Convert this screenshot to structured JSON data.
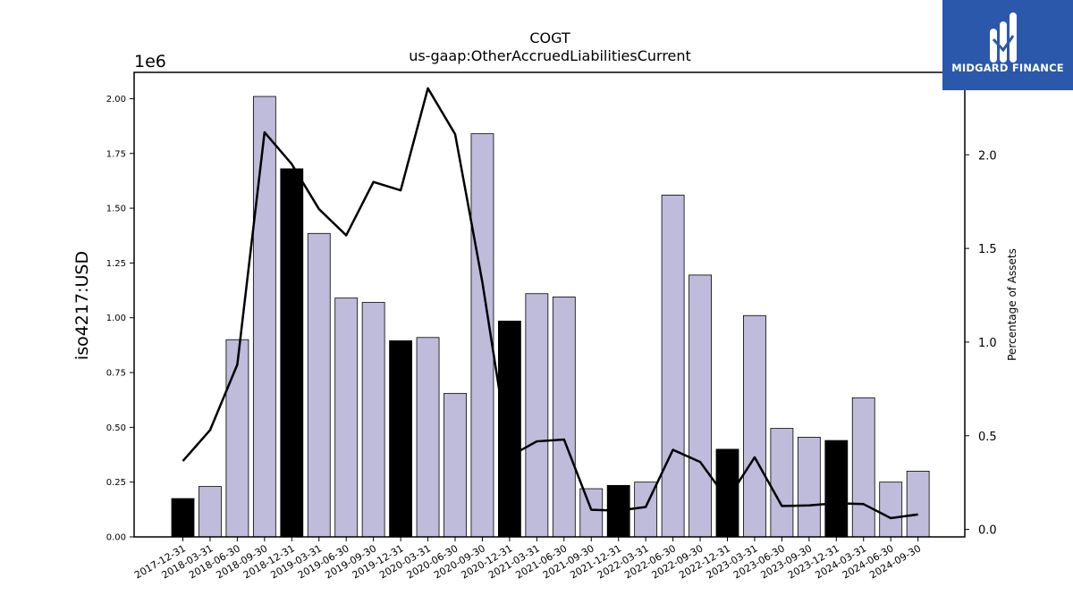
{
  "chart_data": {
    "type": "bar",
    "title": "COGT",
    "subtitle": "us-gaap:OtherAccruedLiabilitiesCurrent",
    "ylabel": "iso4217:USD",
    "y2label": "Percentage of Assets",
    "y_offset_label": "1e6",
    "ylim": [
      0,
      2.12
    ],
    "y2lim": [
      -0.04,
      2.44
    ],
    "yticks": [
      "0.00",
      "0.25",
      "0.50",
      "0.75",
      "1.00",
      "1.25",
      "1.50",
      "1.75",
      "2.00"
    ],
    "y2ticks": [
      "0.0",
      "0.5",
      "1.0",
      "1.5",
      "2.0"
    ],
    "categories": [
      "2017-12-31",
      "2018-03-31",
      "2018-06-30",
      "2018-09-30",
      "2018-12-31",
      "2019-03-31",
      "2019-06-30",
      "2019-09-30",
      "2019-12-31",
      "2020-03-31",
      "2020-06-30",
      "2020-09-30",
      "2020-12-31",
      "2021-03-31",
      "2021-06-30",
      "2021-09-30",
      "2021-12-31",
      "2022-03-31",
      "2022-06-30",
      "2022-09-30",
      "2022-12-31",
      "2023-03-31",
      "2023-06-30",
      "2023-09-30",
      "2023-12-31",
      "2024-03-31",
      "2024-06-30",
      "2024-09-30"
    ],
    "series": [
      {
        "type": "bar",
        "values": [
          0.175,
          0.23,
          0.9,
          2.01,
          1.68,
          1.385,
          1.09,
          1.07,
          0.895,
          0.91,
          0.655,
          1.84,
          0.985,
          1.11,
          1.095,
          0.22,
          0.235,
          0.25,
          1.56,
          1.195,
          0.4,
          1.01,
          0.495,
          0.455,
          0.44,
          0.635,
          0.25,
          0.3
        ],
        "highlight": [
          true,
          false,
          false,
          false,
          true,
          false,
          false,
          false,
          true,
          false,
          false,
          false,
          true,
          false,
          false,
          false,
          true,
          false,
          false,
          false,
          true,
          false,
          false,
          false,
          true,
          false,
          false,
          false
        ]
      },
      {
        "type": "line",
        "axis": "right",
        "values": [
          0.365,
          0.53,
          0.88,
          2.12,
          1.95,
          1.71,
          1.57,
          1.855,
          1.81,
          2.355,
          2.11,
          1.32,
          0.39,
          0.47,
          0.48,
          0.105,
          0.1,
          0.12,
          0.425,
          0.36,
          0.16,
          0.385,
          0.125,
          0.128,
          0.14,
          0.135,
          0.06,
          0.08
        ]
      }
    ],
    "colors": {
      "bar": "#bebbdb",
      "bar_highlight": "#000000",
      "line": "#000000"
    },
    "grid": false,
    "legend": "none"
  },
  "logo": {
    "text": "MIDGARD FINANCE",
    "background": "#2b58aa"
  }
}
